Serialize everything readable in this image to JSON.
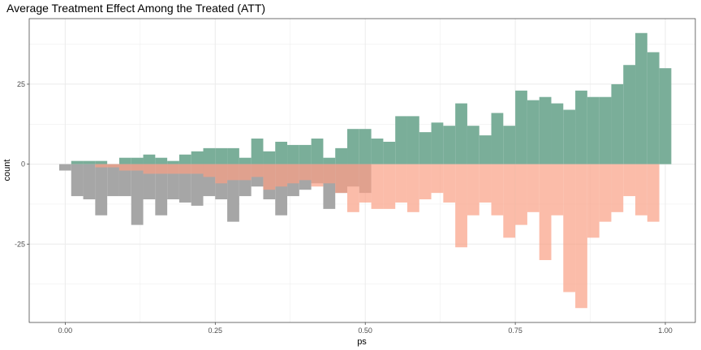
{
  "chart_data": {
    "type": "histogram",
    "title": "Average Treatment Effect Among the Treated (ATT)",
    "xlabel": "ps",
    "ylabel": "count",
    "xlim": [
      -0.06,
      1.05
    ],
    "ylim": [
      -49.5,
      45.5
    ],
    "x_ticks": [
      0,
      0.25,
      0.5,
      0.75,
      1
    ],
    "x_tick_labels": [
      "0.00",
      "0.25",
      "0.50",
      "0.75",
      "1.00"
    ],
    "y_ticks": [
      -25,
      0,
      25
    ],
    "y_tick_labels": [
      "-25",
      "0",
      "25"
    ],
    "grid": true,
    "legend": "none",
    "bin_width": 0.02,
    "bin_start": -0.01,
    "colors": {
      "treated": "#7aae99",
      "control_raw": "#a6a6a6",
      "control_weighted": "#f9a084",
      "panel_border": "#333333",
      "grid": "#ebebeb"
    },
    "series": [
      {
        "key": "treated",
        "values": [
          0,
          1,
          1,
          1,
          0,
          2,
          2,
          3,
          2,
          1,
          3,
          4,
          5,
          5,
          5,
          2,
          8,
          4,
          7,
          6,
          6,
          8,
          2,
          5,
          11,
          11,
          8,
          7,
          15,
          15,
          10,
          13,
          12,
          19,
          12,
          9,
          16,
          12,
          23,
          20,
          21,
          19,
          17,
          23,
          21,
          21,
          25,
          31,
          41,
          35,
          30
        ]
      },
      {
        "key": "control_raw",
        "values": [
          2,
          10,
          11,
          16,
          10,
          10,
          19,
          11,
          16,
          11,
          12,
          13,
          10,
          11,
          18,
          10,
          7,
          11,
          16,
          10,
          8,
          6,
          14,
          9,
          7,
          9,
          0,
          0,
          0,
          0,
          0,
          0,
          0,
          0,
          0,
          0,
          0,
          0,
          0,
          0,
          0,
          0,
          0,
          0,
          0,
          0,
          0,
          0,
          0,
          0,
          0
        ]
      },
      {
        "key": "control_weighted",
        "values": [
          0,
          0,
          0,
          1,
          1,
          2,
          2,
          3,
          3,
          3,
          3,
          3,
          4,
          6,
          5,
          5,
          4,
          8,
          7,
          6,
          5,
          7,
          6,
          9,
          15,
          12,
          14,
          14,
          12,
          15,
          11,
          9,
          12,
          26,
          16,
          12,
          16,
          23,
          19,
          15,
          30,
          16,
          40,
          45,
          23,
          18,
          15,
          10,
          16,
          18,
          0
        ]
      }
    ]
  }
}
